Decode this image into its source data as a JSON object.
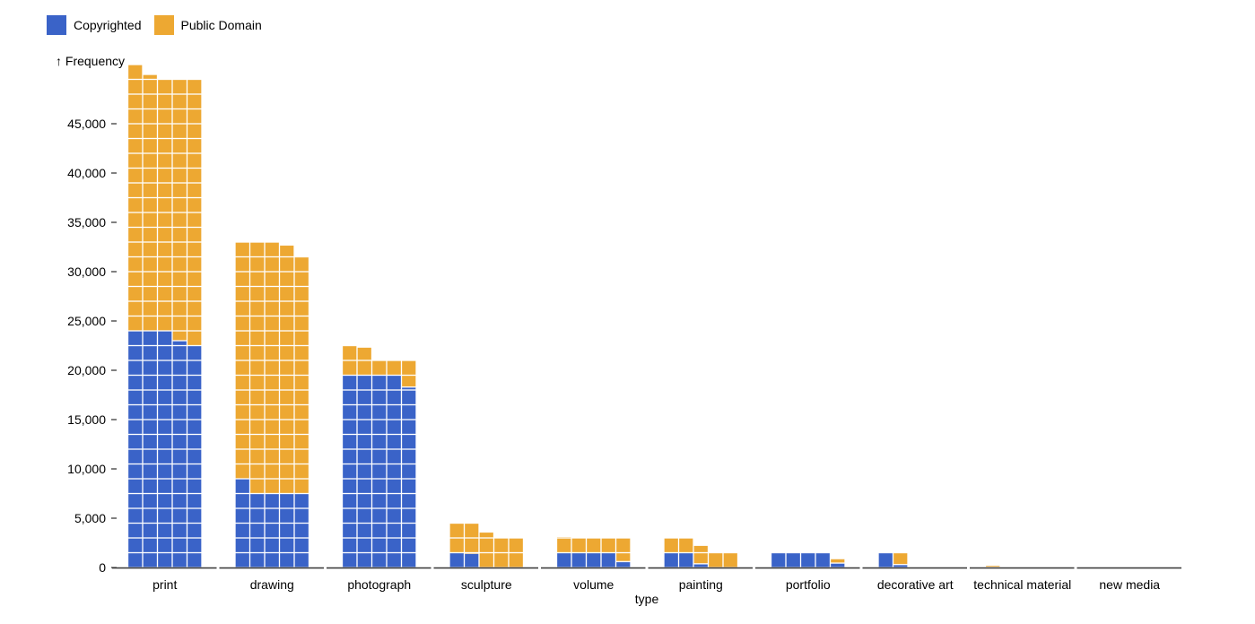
{
  "chart_data": {
    "type": "waffle",
    "stacked": true,
    "xlabel": "type",
    "ylabel": "↑ Frequency",
    "ylim": [
      0,
      50000
    ],
    "yticks": [
      0,
      5000,
      10000,
      15000,
      20000,
      25000,
      30000,
      35000,
      40000,
      45000
    ],
    "ytick_labels": [
      "0",
      "5,000",
      "10,000",
      "15,000",
      "20,000",
      "25,000",
      "30,000",
      "35,000",
      "40,000",
      "45,000"
    ],
    "waffle_unit": 300,
    "cells_per_row": 5,
    "legend_placement": "top-left",
    "categories": [
      "print",
      "drawing",
      "photograph",
      "sculpture",
      "volume",
      "painting",
      "portfolio",
      "decorative art",
      "technical material",
      "new media"
    ],
    "series": [
      {
        "name": "Copyrighted",
        "color": "#3a63c8",
        "values": [
          23500,
          7800,
          19260,
          590,
          1320,
          675,
          1290,
          360,
          5,
          0
        ]
      },
      {
        "name": "Public Domain",
        "color": "#eda832",
        "values": [
          26400,
          24840,
          2310,
          3130,
          1700,
          1575,
          90,
          240,
          40,
          0
        ]
      }
    ]
  }
}
